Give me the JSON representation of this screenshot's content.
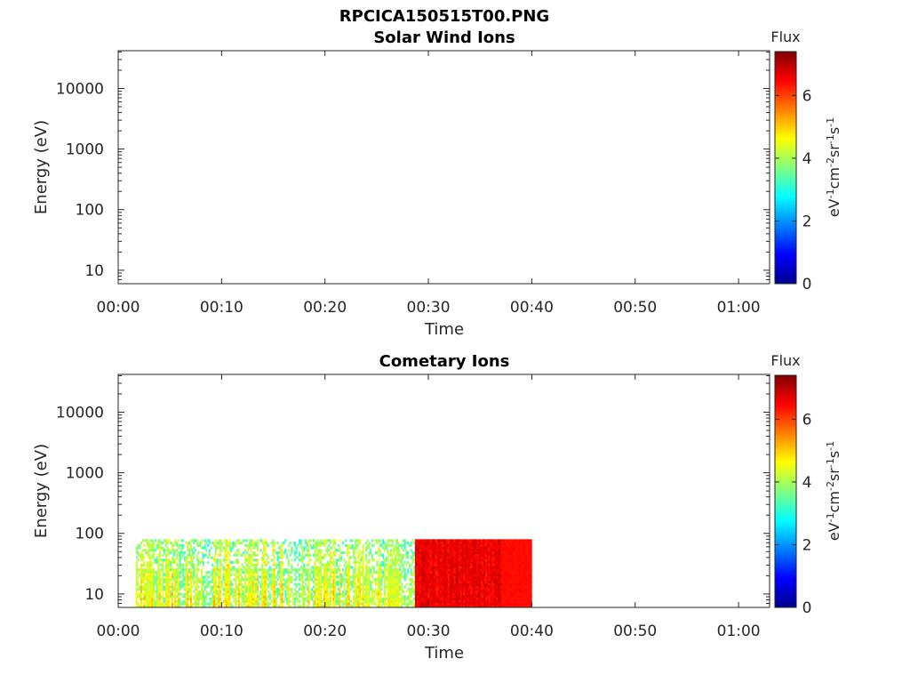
{
  "figure": {
    "title": "RPCICA150515T00.PNG"
  },
  "panels": [
    {
      "title": "Solar Wind Ions",
      "ylabel": "Energy (eV)",
      "xlabel": "Time",
      "colorbar": {
        "title": "Flux",
        "unit_base": "eV",
        "unit_exp1": "-1",
        "unit_mid": "cm",
        "unit_exp2": "-2",
        "unit_sr": "sr",
        "unit_exp3": "-1",
        "unit_s": "s",
        "unit_exp4": "-1"
      }
    },
    {
      "title": "Cometary Ions",
      "ylabel": "Energy (eV)",
      "xlabel": "Time",
      "colorbar": {
        "title": "Flux",
        "unit_base": "eV",
        "unit_exp1": "-1",
        "unit_mid": "cm",
        "unit_exp2": "-2",
        "unit_sr": "sr",
        "unit_exp3": "-1",
        "unit_s": "s",
        "unit_exp4": "-1"
      }
    }
  ],
  "chart_data": [
    {
      "type": "heatmap",
      "title": "Solar Wind Ions",
      "xlabel": "Time",
      "ylabel": "Energy (eV)",
      "x_ticks": [
        "00:00",
        "00:10",
        "00:20",
        "00:30",
        "00:40",
        "00:50",
        "01:00"
      ],
      "x_range_minutes": [
        0,
        63
      ],
      "y_scale": "log",
      "y_ticks": [
        "10",
        "100",
        "1000",
        "10000"
      ],
      "y_range": [
        6,
        42000
      ],
      "colorbar": {
        "label": "Flux",
        "range": [
          0,
          7.4
        ],
        "ticks": [
          "0",
          "2",
          "4",
          "6"
        ],
        "colormap": "jet"
      },
      "data": []
    },
    {
      "type": "heatmap",
      "title": "Cometary Ions",
      "xlabel": "Time",
      "ylabel": "Energy (eV)",
      "x_ticks": [
        "00:00",
        "00:10",
        "00:20",
        "00:30",
        "00:40",
        "00:50",
        "01:00"
      ],
      "x_range_minutes": [
        0,
        63
      ],
      "y_scale": "log",
      "y_ticks": [
        "10",
        "100",
        "1000",
        "10000"
      ],
      "y_range": [
        6,
        42000
      ],
      "colorbar": {
        "label": "Flux",
        "range": [
          0,
          7.4
        ],
        "ticks": [
          "0",
          "2",
          "4",
          "6"
        ],
        "colormap": "jet"
      },
      "data": [
        {
          "t_start": 1.7,
          "t_end": 28.7,
          "e_min": 6,
          "e_max": 80,
          "flux_level": 4.3,
          "pattern": "sparse"
        },
        {
          "t_start": 28.7,
          "t_end": 37.0,
          "e_min": 6,
          "e_max": 80,
          "flux_level": 6.6,
          "pattern": "dense"
        },
        {
          "t_start": 37.0,
          "t_end": 40.0,
          "e_min": 6,
          "e_max": 80,
          "flux_level": 6.4,
          "pattern": "solid"
        }
      ]
    }
  ]
}
